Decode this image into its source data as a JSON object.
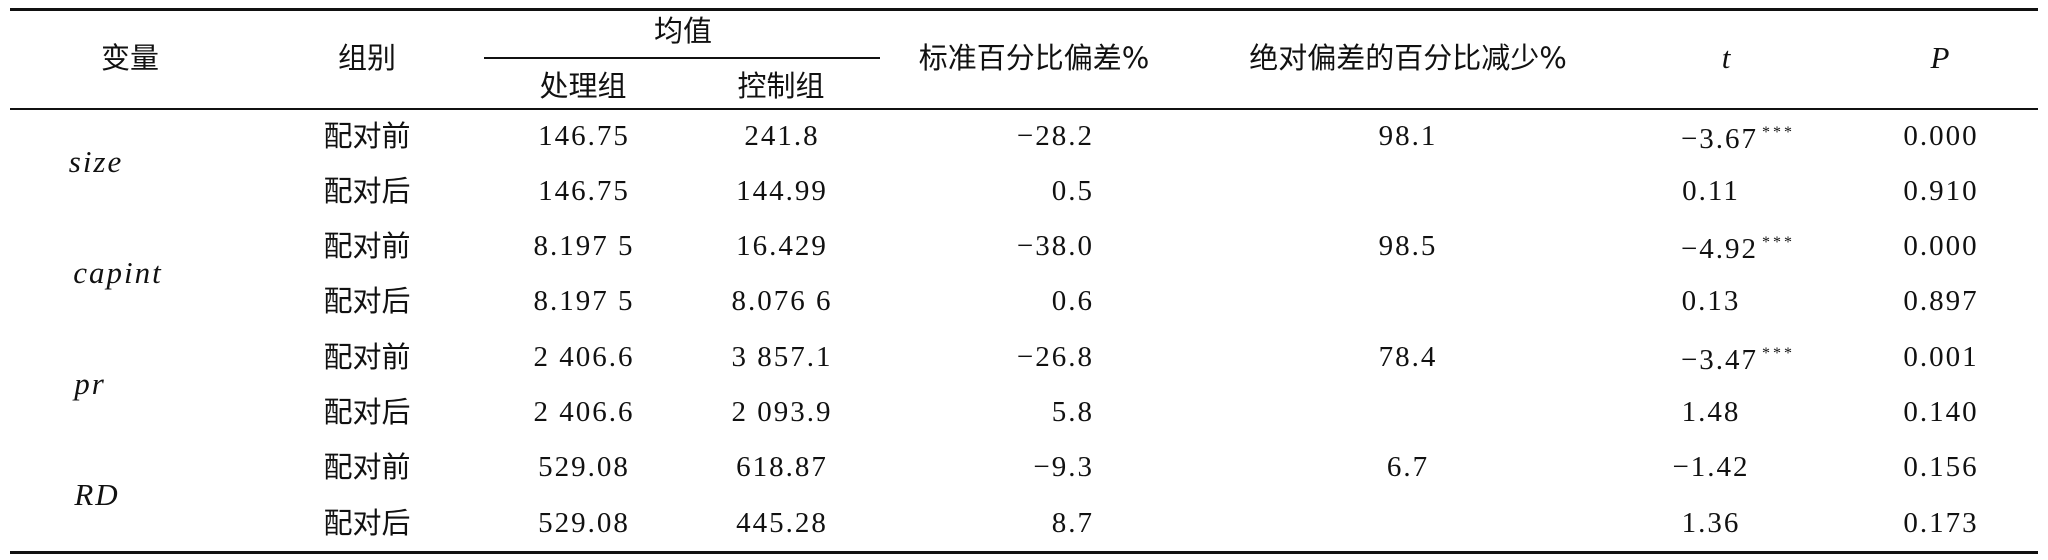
{
  "header": {
    "variable": "变量",
    "group": "组别",
    "mean": "均值",
    "treatment": "处理组",
    "control": "控制组",
    "std_bias": "标准百分比偏差%",
    "bias_reduction": "绝对偏差的百分比减少%",
    "t": "t",
    "p": "P"
  },
  "rows": [
    {
      "variable": "size",
      "before": {
        "group": "配对前",
        "treated": "146.75",
        "control": "241.8",
        "bias": "−28.2",
        "reduction": "98.1",
        "t": "−3.67",
        "stars": "***",
        "p": "0.000"
      },
      "after": {
        "group": "配对后",
        "treated": "146.75",
        "control": "144.99",
        "bias": "0.5",
        "t": "0.11",
        "p": "0.910"
      }
    },
    {
      "variable": "capint",
      "before": {
        "group": "配对前",
        "treated": "8.197 5",
        "control": "16.429",
        "bias": "−38.0",
        "reduction": "98.5",
        "t": "−4.92",
        "stars": "***",
        "p": "0.000"
      },
      "after": {
        "group": "配对后",
        "treated": "8.197 5",
        "control": "8.076 6",
        "bias": "0.6",
        "t": "0.13",
        "p": "0.897"
      }
    },
    {
      "variable": "pr",
      "before": {
        "group": "配对前",
        "treated": "2 406.6",
        "control": "3 857.1",
        "bias": "−26.8",
        "reduction": "78.4",
        "t": "−3.47",
        "stars": "***",
        "p": "0.001"
      },
      "after": {
        "group": "配对后",
        "treated": "2 406.6",
        "control": "2 093.9",
        "bias": "5.8",
        "t": "1.48",
        "p": "0.140"
      }
    },
    {
      "variable": "RD",
      "before": {
        "group": "配对前",
        "treated": "529.08",
        "control": "618.87",
        "bias": "−9.3",
        "reduction": "6.7",
        "t": "−1.42",
        "p": "0.156"
      },
      "after": {
        "group": "配对后",
        "treated": "529.08",
        "control": "445.28",
        "bias": "8.7",
        "t": "1.36",
        "p": "0.173"
      }
    }
  ]
}
